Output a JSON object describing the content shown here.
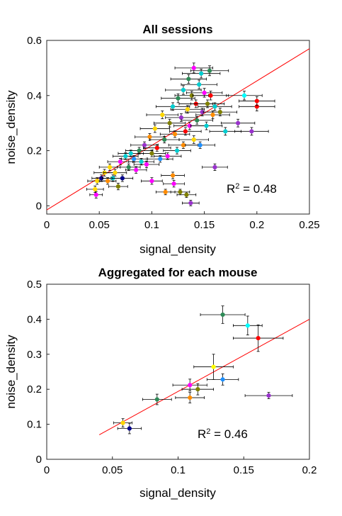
{
  "chart_data": [
    {
      "type": "scatter",
      "title": "All sessions",
      "xlabel": "signal_density",
      "ylabel": "noise_density",
      "xlim": [
        0,
        0.25
      ],
      "ylim": [
        -0.03,
        0.6
      ],
      "xticks": [
        0,
        0.05,
        0.1,
        0.15,
        0.2,
        0.25
      ],
      "xtick_labels": [
        "0",
        "0.05",
        "0.1",
        "0.15",
        "0.2",
        "0.25"
      ],
      "yticks": [
        0,
        0.2,
        0.4,
        0.6
      ],
      "ytick_labels": [
        "0",
        "0.2",
        "0.4",
        "0.6"
      ],
      "annotation": {
        "base": "R",
        "sup": "2",
        "rest": " = 0.48"
      },
      "fit_line": {
        "x": [
          0,
          0.25
        ],
        "y": [
          -0.015,
          0.57
        ],
        "color": "#ff0000"
      },
      "grid": false,
      "points": [
        {
          "x": 0.047,
          "y": 0.04,
          "xe": 0.006,
          "ye": 0.012,
          "c": "#ff00ff"
        },
        {
          "x": 0.046,
          "y": 0.06,
          "xe": 0.008,
          "ye": 0.012,
          "c": "#ffd700"
        },
        {
          "x": 0.048,
          "y": 0.09,
          "xe": 0.009,
          "ye": 0.012,
          "c": "#ffd700"
        },
        {
          "x": 0.052,
          "y": 0.1,
          "xe": 0.009,
          "ye": 0.012,
          "c": "#00008b"
        },
        {
          "x": 0.055,
          "y": 0.12,
          "xe": 0.01,
          "ye": 0.012,
          "c": "#ffd700"
        },
        {
          "x": 0.058,
          "y": 0.09,
          "xe": 0.008,
          "ye": 0.012,
          "c": "#ff8c00"
        },
        {
          "x": 0.06,
          "y": 0.14,
          "xe": 0.01,
          "ye": 0.012,
          "c": "#ffd700"
        },
        {
          "x": 0.063,
          "y": 0.1,
          "xe": 0.01,
          "ye": 0.012,
          "c": "#00ced1"
        },
        {
          "x": 0.065,
          "y": 0.12,
          "xe": 0.011,
          "ye": 0.012,
          "c": "#ffd700"
        },
        {
          "x": 0.068,
          "y": 0.07,
          "xe": 0.009,
          "ye": 0.012,
          "c": "#808000"
        },
        {
          "x": 0.07,
          "y": 0.16,
          "xe": 0.012,
          "ye": 0.012,
          "c": "#ff00ff"
        },
        {
          "x": 0.072,
          "y": 0.1,
          "xe": 0.01,
          "ye": 0.012,
          "c": "#00008b"
        },
        {
          "x": 0.075,
          "y": 0.18,
          "xe": 0.012,
          "ye": 0.012,
          "c": "#00ced1"
        },
        {
          "x": 0.078,
          "y": 0.14,
          "xe": 0.011,
          "ye": 0.012,
          "c": "#2e8b57"
        },
        {
          "x": 0.08,
          "y": 0.19,
          "xe": 0.012,
          "ye": 0.012,
          "c": "#00ced1"
        },
        {
          "x": 0.083,
          "y": 0.17,
          "xe": 0.012,
          "ye": 0.012,
          "c": "#1e90ff"
        },
        {
          "x": 0.085,
          "y": 0.13,
          "xe": 0.01,
          "ye": 0.012,
          "c": "#ff00ff"
        },
        {
          "x": 0.088,
          "y": 0.2,
          "xe": 0.013,
          "ye": 0.012,
          "c": "#2e8b57"
        },
        {
          "x": 0.09,
          "y": 0.16,
          "xe": 0.012,
          "ye": 0.012,
          "c": "#00ced1"
        },
        {
          "x": 0.093,
          "y": 0.22,
          "xe": 0.013,
          "ye": 0.012,
          "c": "#9932cc"
        },
        {
          "x": 0.095,
          "y": 0.15,
          "xe": 0.012,
          "ye": 0.012,
          "c": "#ff00ff"
        },
        {
          "x": 0.098,
          "y": 0.25,
          "xe": 0.014,
          "ye": 0.012,
          "c": "#ff8c00"
        },
        {
          "x": 0.1,
          "y": 0.09,
          "xe": 0.01,
          "ye": 0.012,
          "c": "#ff00ff"
        },
        {
          "x": 0.1,
          "y": 0.19,
          "xe": 0.013,
          "ye": 0.012,
          "c": "#808000"
        },
        {
          "x": 0.103,
          "y": 0.28,
          "xe": 0.014,
          "ye": 0.014,
          "c": "#ffd700"
        },
        {
          "x": 0.105,
          "y": 0.21,
          "xe": 0.013,
          "ye": 0.012,
          "c": "#ff0000"
        },
        {
          "x": 0.108,
          "y": 0.17,
          "xe": 0.012,
          "ye": 0.012,
          "c": "#1e90ff"
        },
        {
          "x": 0.11,
          "y": 0.33,
          "xe": 0.015,
          "ye": 0.014,
          "c": "#ffd700"
        },
        {
          "x": 0.112,
          "y": 0.24,
          "xe": 0.014,
          "ye": 0.012,
          "c": "#2e8b57"
        },
        {
          "x": 0.113,
          "y": 0.05,
          "xe": 0.009,
          "ye": 0.01,
          "c": "#ff8c00"
        },
        {
          "x": 0.115,
          "y": 0.18,
          "xe": 0.013,
          "ye": 0.012,
          "c": "#ff00ff"
        },
        {
          "x": 0.117,
          "y": 0.3,
          "xe": 0.015,
          "ye": 0.014,
          "c": "#808000"
        },
        {
          "x": 0.12,
          "y": 0.11,
          "xe": 0.011,
          "ye": 0.012,
          "c": "#ff8c00"
        },
        {
          "x": 0.12,
          "y": 0.36,
          "xe": 0.016,
          "ye": 0.014,
          "c": "#00ced1"
        },
        {
          "x": 0.121,
          "y": 0.08,
          "xe": 0.01,
          "ye": 0.012,
          "c": "#ff00ff"
        },
        {
          "x": 0.122,
          "y": 0.26,
          "xe": 0.014,
          "ye": 0.012,
          "c": "#ff8c00"
        },
        {
          "x": 0.124,
          "y": 0.2,
          "xe": 0.013,
          "ye": 0.012,
          "c": "#00ced1"
        },
        {
          "x": 0.125,
          "y": 0.39,
          "xe": 0.016,
          "ye": 0.016,
          "c": "#2e8b57"
        },
        {
          "x": 0.127,
          "y": 0.05,
          "xe": 0.009,
          "ye": 0.01,
          "c": "#808000"
        },
        {
          "x": 0.128,
          "y": 0.32,
          "xe": 0.015,
          "ye": 0.014,
          "c": "#9932cc"
        },
        {
          "x": 0.13,
          "y": 0.42,
          "xe": 0.017,
          "ye": 0.016,
          "c": "#00ced1"
        },
        {
          "x": 0.13,
          "y": 0.22,
          "xe": 0.014,
          "ye": 0.012,
          "c": "#ff8c00"
        },
        {
          "x": 0.132,
          "y": 0.27,
          "xe": 0.015,
          "ye": 0.014,
          "c": "#ff0000"
        },
        {
          "x": 0.133,
          "y": 0.04,
          "xe": 0.009,
          "ye": 0.01,
          "c": "#808000"
        },
        {
          "x": 0.134,
          "y": 0.35,
          "xe": 0.016,
          "ye": 0.014,
          "c": "#ffd700"
        },
        {
          "x": 0.135,
          "y": 0.46,
          "xe": 0.017,
          "ye": 0.016,
          "c": "#2e8b57"
        },
        {
          "x": 0.136,
          "y": 0.29,
          "xe": 0.015,
          "ye": 0.014,
          "c": "#ff00ff"
        },
        {
          "x": 0.137,
          "y": 0.01,
          "xe": 0.008,
          "ye": 0.01,
          "c": "#9932cc"
        },
        {
          "x": 0.138,
          "y": 0.4,
          "xe": 0.016,
          "ye": 0.016,
          "c": "#808000"
        },
        {
          "x": 0.14,
          "y": 0.5,
          "xe": 0.018,
          "ye": 0.018,
          "c": "#ff00ff"
        },
        {
          "x": 0.14,
          "y": 0.24,
          "xe": 0.014,
          "ye": 0.014,
          "c": "#ffd700"
        },
        {
          "x": 0.142,
          "y": 0.37,
          "xe": 0.016,
          "ye": 0.014,
          "c": "#ff0000"
        },
        {
          "x": 0.143,
          "y": 0.31,
          "xe": 0.015,
          "ye": 0.014,
          "c": "#2e8b57"
        },
        {
          "x": 0.145,
          "y": 0.44,
          "xe": 0.017,
          "ye": 0.016,
          "c": "#00ced1"
        },
        {
          "x": 0.146,
          "y": 0.22,
          "xe": 0.014,
          "ye": 0.012,
          "c": "#1e90ff"
        },
        {
          "x": 0.147,
          "y": 0.48,
          "xe": 0.018,
          "ye": 0.016,
          "c": "#00ced1"
        },
        {
          "x": 0.148,
          "y": 0.34,
          "xe": 0.016,
          "ye": 0.014,
          "c": "#9932cc"
        },
        {
          "x": 0.15,
          "y": 0.41,
          "xe": 0.017,
          "ye": 0.016,
          "c": "#ff00ff"
        },
        {
          "x": 0.152,
          "y": 0.29,
          "xe": 0.015,
          "ye": 0.014,
          "c": "#00ced1"
        },
        {
          "x": 0.153,
          "y": 0.37,
          "xe": 0.016,
          "ye": 0.014,
          "c": "#808000"
        },
        {
          "x": 0.155,
          "y": 0.49,
          "xe": 0.018,
          "ye": 0.018,
          "c": "#2e8b57"
        },
        {
          "x": 0.156,
          "y": 0.4,
          "xe": 0.017,
          "ye": 0.016,
          "c": "#ff0000"
        },
        {
          "x": 0.158,
          "y": 0.33,
          "xe": 0.016,
          "ye": 0.014,
          "c": "#ff8c00"
        },
        {
          "x": 0.16,
          "y": 0.14,
          "xe": 0.012,
          "ye": 0.012,
          "c": "#9932cc"
        },
        {
          "x": 0.16,
          "y": 0.36,
          "xe": 0.016,
          "ye": 0.014,
          "c": "#00ced1"
        },
        {
          "x": 0.165,
          "y": 0.34,
          "xe": 0.016,
          "ye": 0.014,
          "c": "#808000"
        },
        {
          "x": 0.17,
          "y": 0.27,
          "xe": 0.015,
          "ye": 0.014,
          "c": "#00ced1"
        },
        {
          "x": 0.182,
          "y": 0.3,
          "xe": 0.016,
          "ye": 0.014,
          "c": "#9932cc"
        },
        {
          "x": 0.188,
          "y": 0.4,
          "xe": 0.017,
          "ye": 0.016,
          "c": "#00ffff"
        },
        {
          "x": 0.195,
          "y": 0.27,
          "xe": 0.016,
          "ye": 0.014,
          "c": "#9932cc"
        },
        {
          "x": 0.2,
          "y": 0.36,
          "xe": 0.017,
          "ye": 0.016,
          "c": "#ff0000"
        },
        {
          "x": 0.2,
          "y": 0.38,
          "xe": 0.017,
          "ye": 0.016,
          "c": "#ff0000"
        }
      ]
    },
    {
      "type": "scatter",
      "title": "Aggregated for each mouse",
      "xlabel": "signal_density",
      "ylabel": "noise_density",
      "xlim": [
        0,
        0.2
      ],
      "ylim": [
        0,
        0.5
      ],
      "xticks": [
        0,
        0.05,
        0.1,
        0.15,
        0.2
      ],
      "xtick_labels": [
        "0",
        "0.05",
        "0.1",
        "0.15",
        "0.2"
      ],
      "yticks": [
        0,
        0.1,
        0.2,
        0.3,
        0.4,
        0.5
      ],
      "ytick_labels": [
        "0",
        "0.1",
        "0.2",
        "0.3",
        "0.4",
        "0.5"
      ],
      "annotation": {
        "base": "R",
        "sup": "2",
        "rest": " = 0.46"
      },
      "fit_line": {
        "x": [
          0.04,
          0.2
        ],
        "y": [
          0.07,
          0.4
        ],
        "color": "#ff0000"
      },
      "grid": false,
      "points": [
        {
          "x": 0.058,
          "y": 0.104,
          "xe": 0.007,
          "ye": 0.012,
          "c": "#ffd700"
        },
        {
          "x": 0.063,
          "y": 0.088,
          "xe": 0.009,
          "ye": 0.015,
          "c": "#00008b"
        },
        {
          "x": 0.084,
          "y": 0.171,
          "xe": 0.011,
          "ye": 0.015,
          "c": "#2e8b57"
        },
        {
          "x": 0.109,
          "y": 0.176,
          "xe": 0.011,
          "ye": 0.015,
          "c": "#ff8c00"
        },
        {
          "x": 0.109,
          "y": 0.212,
          "xe": 0.013,
          "ye": 0.017,
          "c": "#ff00ff"
        },
        {
          "x": 0.115,
          "y": 0.2,
          "xe": 0.012,
          "ye": 0.016,
          "c": "#808000"
        },
        {
          "x": 0.127,
          "y": 0.264,
          "xe": 0.015,
          "ye": 0.036,
          "c": "#ffff00"
        },
        {
          "x": 0.134,
          "y": 0.228,
          "xe": 0.012,
          "ye": 0.016,
          "c": "#1e90ff"
        },
        {
          "x": 0.134,
          "y": 0.413,
          "xe": 0.017,
          "ye": 0.025,
          "c": "#2e8b57"
        },
        {
          "x": 0.153,
          "y": 0.382,
          "xe": 0.011,
          "ye": 0.027,
          "c": "#00ffff"
        },
        {
          "x": 0.161,
          "y": 0.346,
          "xe": 0.019,
          "ye": 0.038,
          "c": "#ff0000"
        },
        {
          "x": 0.169,
          "y": 0.182,
          "xe": 0.018,
          "ye": 0.009,
          "c": "#9932cc"
        }
      ]
    }
  ]
}
